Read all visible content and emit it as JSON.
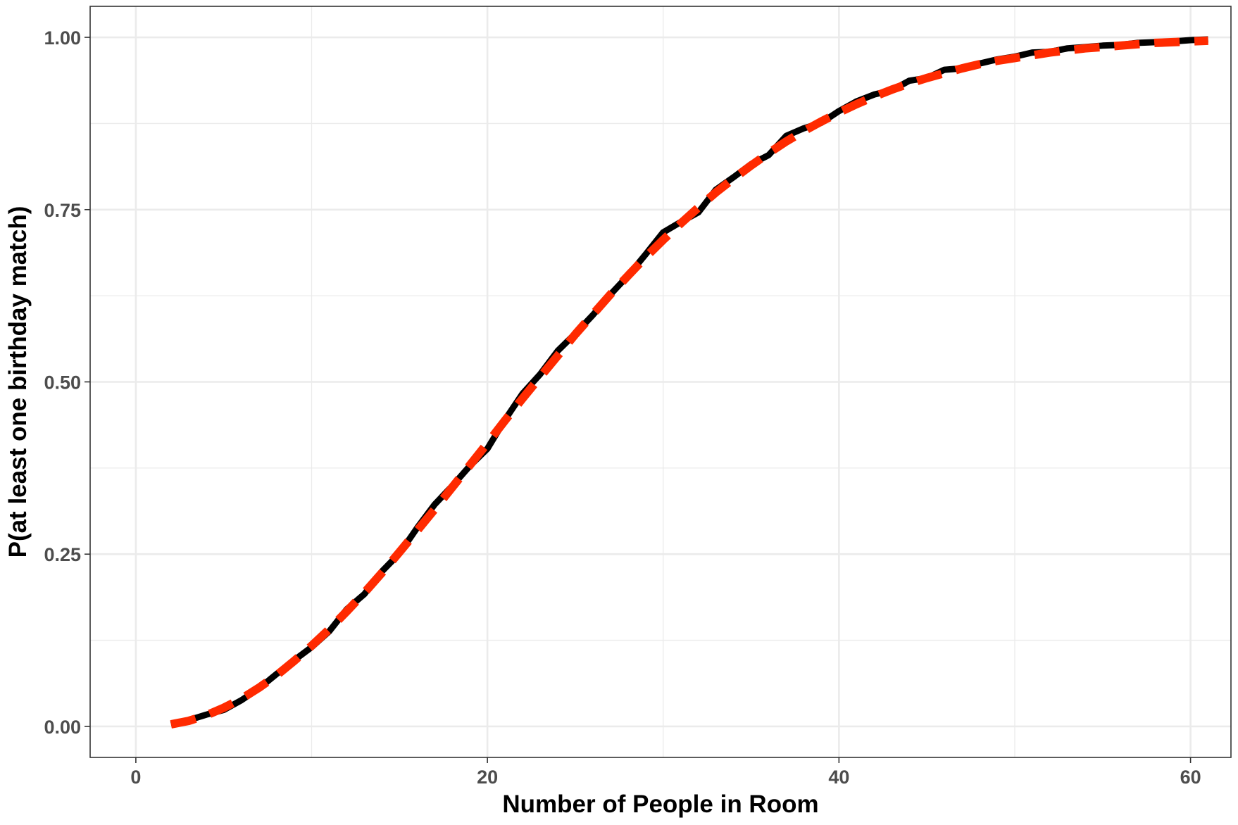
{
  "chart_data": {
    "type": "line",
    "title": "",
    "xlabel": "Number of People in Room",
    "ylabel": "P(at least one birthday match)",
    "xlim": [
      -2.6,
      62.3
    ],
    "ylim": [
      -0.045,
      1.045
    ],
    "x_ticks": [
      0,
      20,
      40,
      60
    ],
    "x_tick_labels": [
      "0",
      "20",
      "40",
      "60"
    ],
    "y_ticks": [
      0,
      0.25,
      0.5,
      0.75,
      1
    ],
    "y_tick_labels": [
      "0.00",
      "0.25",
      "0.50",
      "0.75",
      "1.00"
    ],
    "x_minor_ticks": [
      10,
      30,
      50
    ],
    "y_minor_ticks": [
      0.125,
      0.375,
      0.625,
      0.875
    ],
    "grid": true,
    "legend": "none",
    "series": [
      {
        "style": "solid",
        "color": "#000000",
        "x": [
          2,
          3,
          4,
          5,
          6,
          7,
          8,
          9,
          10,
          11,
          12,
          13,
          14,
          15,
          16,
          17,
          18,
          19,
          20,
          21,
          22,
          23,
          24,
          25,
          26,
          27,
          28,
          29,
          30,
          31,
          32,
          33,
          34,
          35,
          36,
          37,
          38,
          39,
          40,
          41,
          42,
          43,
          44,
          45,
          46,
          47,
          48,
          49,
          50,
          51,
          52,
          53,
          54,
          55,
          56,
          57,
          58,
          59,
          60,
          61
        ],
        "y": [
          0.003,
          0.009,
          0.017,
          0.024,
          0.038,
          0.055,
          0.076,
          0.096,
          0.115,
          0.138,
          0.17,
          0.192,
          0.225,
          0.251,
          0.288,
          0.322,
          0.349,
          0.378,
          0.403,
          0.445,
          0.483,
          0.511,
          0.545,
          0.57,
          0.597,
          0.627,
          0.654,
          0.685,
          0.717,
          0.732,
          0.746,
          0.779,
          0.797,
          0.816,
          0.829,
          0.857,
          0.868,
          0.876,
          0.893,
          0.907,
          0.917,
          0.923,
          0.937,
          0.941,
          0.953,
          0.955,
          0.962,
          0.968,
          0.972,
          0.978,
          0.979,
          0.984,
          0.986,
          0.988,
          0.989,
          0.992,
          0.993,
          0.994,
          0.996,
          0.997
        ]
      },
      {
        "style": "dashed",
        "color": "#ff2a00",
        "x": [
          2,
          3,
          4,
          5,
          6,
          7,
          8,
          9,
          10,
          11,
          12,
          13,
          14,
          15,
          16,
          17,
          18,
          19,
          20,
          21,
          22,
          23,
          24,
          25,
          26,
          27,
          28,
          29,
          30,
          31,
          32,
          33,
          34,
          35,
          36,
          37,
          38,
          39,
          40,
          41,
          42,
          43,
          44,
          45,
          46,
          47,
          48,
          49,
          50,
          51,
          52,
          53,
          54,
          55,
          56,
          57,
          58,
          59,
          60,
          61
        ],
        "y": [
          0.003,
          0.008,
          0.016,
          0.027,
          0.04,
          0.056,
          0.074,
          0.095,
          0.117,
          0.141,
          0.167,
          0.194,
          0.223,
          0.253,
          0.284,
          0.315,
          0.347,
          0.379,
          0.411,
          0.444,
          0.476,
          0.507,
          0.538,
          0.569,
          0.598,
          0.627,
          0.654,
          0.681,
          0.706,
          0.73,
          0.753,
          0.775,
          0.795,
          0.814,
          0.832,
          0.849,
          0.864,
          0.878,
          0.891,
          0.903,
          0.914,
          0.924,
          0.933,
          0.941,
          0.948,
          0.955,
          0.961,
          0.966,
          0.97,
          0.974,
          0.978,
          0.981,
          0.984,
          0.986,
          0.988,
          0.99,
          0.992,
          0.993,
          0.994,
          0.995
        ]
      }
    ]
  }
}
